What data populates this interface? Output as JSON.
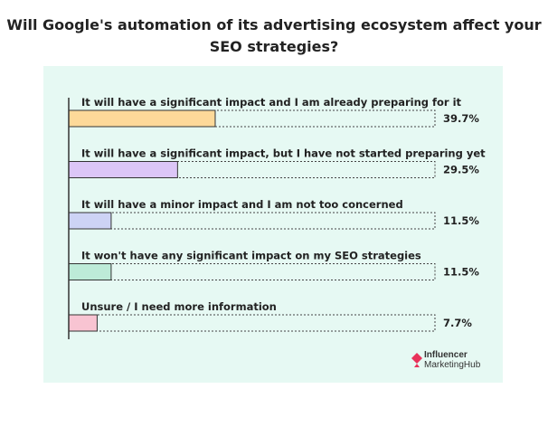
{
  "title": "Will Google's automation of its advertising ecosystem affect your SEO strategies?",
  "brand": {
    "line1": "Influencer",
    "line2": "MarketingHub",
    "color": "#e8325a"
  },
  "chart_data": {
    "type": "bar",
    "orientation": "horizontal",
    "title": "Will Google's automation of its advertising ecosystem affect your SEO strategies?",
    "categories": [
      "It will have a significant impact and I am already preparing for it",
      "It will have a significant impact, but I have not started preparing yet",
      "It will have a minor impact and I am not too concerned",
      "It won't have any significant impact on my SEO strategies",
      "Unsure / I need more information"
    ],
    "values": [
      39.7,
      29.5,
      11.5,
      11.5,
      7.7
    ],
    "value_labels": [
      "39.7%",
      "29.5%",
      "11.5%",
      "11.5%",
      "7.7%"
    ],
    "colors": [
      "#fdd999",
      "#dcc6f7",
      "#cdd3f5",
      "#bdebd8",
      "#f8c4d2"
    ],
    "xlim": [
      0,
      100
    ],
    "grid": false,
    "legend": "none"
  }
}
